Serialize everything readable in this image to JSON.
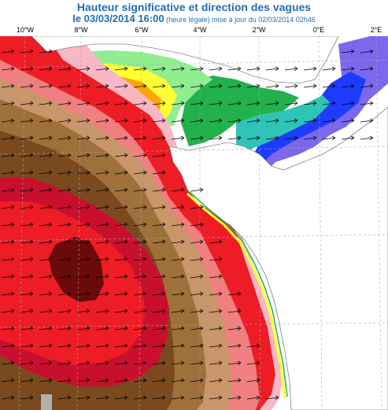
{
  "header": {
    "title": "Hauteur significative et direction des vagues",
    "date_line": "le 03/03/2014 16:00",
    "legal_note": "(heure légale)",
    "update_note": "mise à jour du 02/03/2014 02h46"
  },
  "axis": {
    "longitude_labels": [
      "10°W",
      "8°W",
      "6°W",
      "4°W",
      "2°W",
      "0°E",
      "2°E"
    ]
  },
  "colors": {
    "title": "#1f6fb5",
    "dark_maroon": "#6b0a0a",
    "dark_red": "#c8102e",
    "red": "#ee1c25",
    "dark_brown": "#7a4a1e",
    "brown": "#a0703a",
    "tan": "#c9956a",
    "light_pink": "#f7b8c4",
    "salmon": "#f08080",
    "orange": "#ffa500",
    "yellow": "#ffff33",
    "light_green": "#90ee90",
    "green": "#22b14c",
    "teal": "#2ec4b6",
    "blue": "#1e3cff",
    "purple": "#7b68ee",
    "land": "#ffffff",
    "grid": "#aaaaaa"
  }
}
